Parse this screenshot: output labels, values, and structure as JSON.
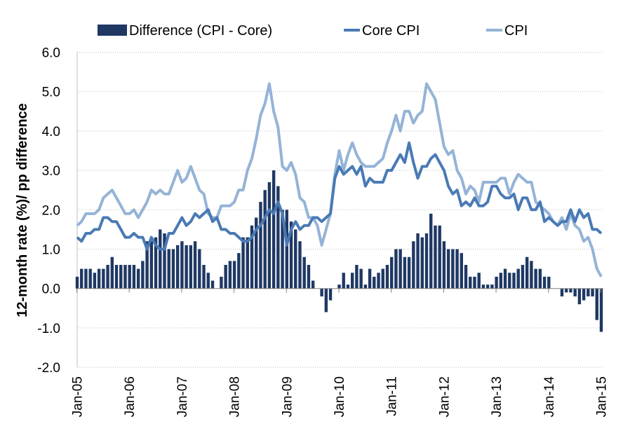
{
  "chart_data": {
    "type": "bar+line",
    "title": "",
    "xlabel": "",
    "ylabel": "12-month rate (%)/ pp difference",
    "ylim": [
      -2.0,
      6.0
    ],
    "yticks": [
      "6.0",
      "5.0",
      "4.0",
      "3.0",
      "2.0",
      "1.0",
      "0.0",
      "-1.0",
      "-2.0"
    ],
    "ytick_values": [
      6,
      5,
      4,
      3,
      2,
      1,
      0,
      -1,
      -2
    ],
    "grid": true,
    "legend_position": "top",
    "x_start": "Jan-05",
    "x_end": "Jan-15",
    "frequency": "monthly",
    "xtick_labels": [
      "Jan-05",
      "Jan-06",
      "Jan-07",
      "Jan-08",
      "Jan-09",
      "Jan-10",
      "Jan-11",
      "Jan-12",
      "Jan-13",
      "Jan-14",
      "Jan-15"
    ],
    "colors": {
      "difference": "#1f3864",
      "core": "#4a7ab5",
      "cpi": "#95b3d7"
    },
    "series": [
      {
        "name": "Difference (CPI - Core)",
        "type": "bar",
        "values": [
          0.3,
          0.5,
          0.5,
          0.5,
          0.4,
          0.5,
          0.5,
          0.6,
          0.8,
          0.6,
          0.6,
          0.6,
          0.6,
          0.6,
          0.5,
          0.7,
          1.2,
          1.2,
          1.3,
          1.5,
          1.4,
          1.0,
          1.0,
          1.1,
          1.2,
          1.1,
          1.1,
          1.2,
          1.0,
          0.6,
          0.4,
          0.2,
          0.0,
          0.3,
          0.6,
          0.7,
          0.7,
          0.9,
          1.3,
          1.3,
          1.6,
          1.8,
          2.2,
          2.5,
          2.7,
          3.0,
          2.6,
          2.0,
          2.0,
          1.7,
          1.5,
          1.2,
          0.8,
          0.6,
          0.2,
          0.0,
          -0.2,
          -0.6,
          -0.3,
          0.0,
          0.1,
          0.4,
          0.1,
          0.4,
          0.6,
          0.5,
          0.1,
          0.5,
          0.3,
          0.4,
          0.5,
          0.6,
          0.8,
          1.0,
          1.0,
          0.8,
          0.8,
          1.2,
          1.4,
          1.3,
          1.4,
          1.9,
          1.6,
          1.6,
          1.2,
          1.0,
          1.0,
          1.0,
          0.9,
          0.6,
          0.3,
          0.3,
          0.4,
          0.1,
          0.1,
          0.1,
          0.3,
          0.4,
          0.5,
          0.4,
          0.4,
          0.5,
          0.6,
          0.8,
          0.7,
          0.5,
          0.5,
          0.3,
          0.3,
          0.0,
          0.0,
          -0.2,
          -0.1,
          -0.1,
          -0.2,
          -0.4,
          -0.3,
          -0.2,
          -0.2,
          -0.8,
          -1.1
        ]
      },
      {
        "name": "Core CPI",
        "type": "line",
        "values": [
          1.3,
          1.2,
          1.4,
          1.4,
          1.5,
          1.5,
          1.8,
          1.8,
          1.7,
          1.7,
          1.5,
          1.3,
          1.3,
          1.4,
          1.3,
          1.3,
          1.0,
          1.3,
          1.1,
          1.0,
          1.0,
          1.4,
          1.4,
          1.6,
          1.8,
          1.6,
          1.7,
          1.9,
          1.8,
          1.9,
          2.0,
          1.7,
          1.8,
          1.5,
          1.5,
          1.4,
          1.4,
          1.3,
          1.2,
          1.2,
          1.3,
          1.5,
          1.6,
          1.8,
          2.0,
          1.9,
          2.2,
          1.9,
          1.1,
          1.5,
          1.7,
          1.5,
          1.6,
          1.6,
          1.8,
          1.8,
          1.7,
          1.8,
          1.9,
          2.8,
          3.1,
          2.9,
          3.0,
          3.1,
          2.9,
          3.1,
          2.6,
          2.8,
          2.7,
          2.7,
          2.7,
          3.0,
          3.0,
          3.2,
          3.4,
          3.2,
          3.7,
          3.2,
          2.8,
          3.1,
          3.1,
          3.3,
          3.4,
          3.2,
          3.0,
          2.6,
          2.4,
          2.5,
          2.1,
          2.2,
          2.1,
          2.3,
          2.1,
          2.1,
          2.2,
          2.6,
          2.6,
          2.4,
          2.3,
          2.3,
          2.4,
          2.0,
          2.3,
          2.3,
          2.0,
          2.0,
          2.2,
          1.7,
          1.8,
          1.7,
          1.6,
          1.7,
          1.7,
          2.0,
          1.7,
          2.0,
          1.8,
          1.9,
          1.5,
          1.5,
          1.4
        ]
      },
      {
        "name": "CPI",
        "type": "line",
        "values": [
          1.6,
          1.7,
          1.9,
          1.9,
          1.9,
          2.0,
          2.3,
          2.4,
          2.5,
          2.3,
          2.1,
          1.9,
          1.9,
          2.0,
          1.8,
          2.0,
          2.2,
          2.5,
          2.4,
          2.5,
          2.4,
          2.4,
          2.7,
          3.0,
          2.7,
          2.8,
          3.1,
          2.8,
          2.5,
          2.4,
          1.9,
          1.8,
          1.8,
          2.1,
          2.1,
          2.1,
          2.2,
          2.5,
          2.5,
          3.0,
          3.3,
          3.8,
          4.4,
          4.7,
          5.2,
          4.5,
          4.1,
          3.1,
          3.0,
          3.2,
          2.9,
          2.3,
          2.2,
          1.8,
          1.8,
          1.6,
          1.1,
          1.5,
          1.9,
          2.9,
          3.5,
          3.0,
          3.4,
          3.7,
          3.4,
          3.2,
          3.1,
          3.1,
          3.1,
          3.2,
          3.3,
          3.7,
          4.0,
          4.4,
          4.0,
          4.5,
          4.5,
          4.2,
          4.4,
          4.5,
          5.2,
          5.0,
          4.8,
          4.2,
          3.6,
          3.4,
          3.5,
          3.0,
          2.8,
          2.4,
          2.6,
          2.5,
          2.2,
          2.7,
          2.7,
          2.7,
          2.7,
          2.8,
          2.8,
          2.4,
          2.7,
          2.9,
          2.8,
          2.7,
          2.7,
          2.2,
          2.1,
          2.0,
          1.9,
          1.7,
          1.6,
          1.8,
          1.5,
          1.9,
          1.6,
          1.5,
          1.2,
          1.3,
          1.0,
          0.5,
          0.3
        ]
      }
    ]
  }
}
